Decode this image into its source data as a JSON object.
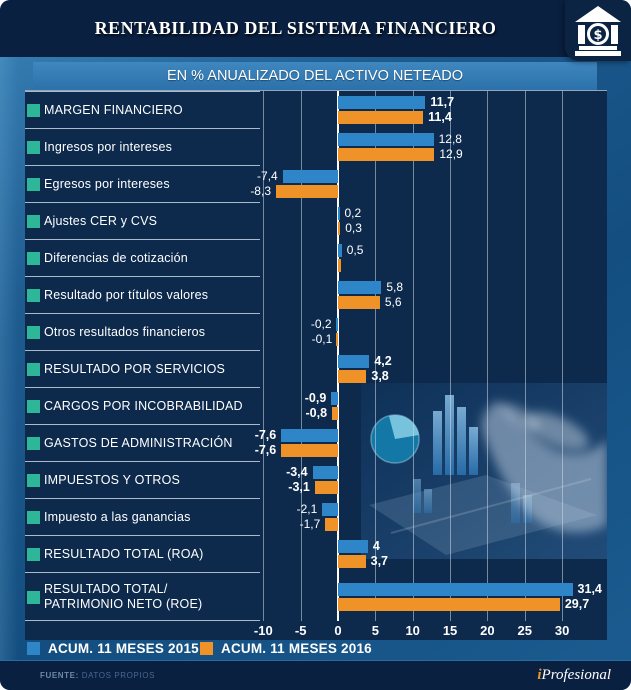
{
  "header": {
    "title": "RENTABILIDAD DEL SISTEMA FINANCIERO"
  },
  "icons": {
    "bank": "bank-dollar-icon",
    "dollar": "$"
  },
  "subtitle": "EN % ANUALIZADO DEL ACTIVO NETEADO",
  "chart_data": {
    "type": "bar",
    "orientation": "horizontal",
    "title": "RENTABILIDAD DEL SISTEMA FINANCIERO",
    "subtitle": "EN % ANUALIZADO DEL ACTIVO NETEADO",
    "xlim": [
      -12,
      36
    ],
    "ticks": [
      -10,
      -5,
      0,
      5,
      10,
      15,
      20,
      25,
      30
    ],
    "tick_labels": [
      "-10",
      "-5",
      "0",
      "5",
      "10",
      "15",
      "20",
      "25",
      "30"
    ],
    "grid": true,
    "legend_position": "bottom",
    "categories": [
      "MARGEN FINANCIERO",
      "Ingresos por intereses",
      "Egresos por intereses",
      "Ajustes CER y CVS",
      "Diferencias de cotización",
      "Resultado por títulos valores",
      "Otros resultados financieros",
      "RESULTADO POR SERVICIOS",
      "CARGOS POR INCOBRABILIDAD",
      "GASTOS DE ADMINISTRACIÓN",
      "IMPUESTOS Y OTROS",
      "Impuesto a las ganancias",
      "RESULTADO TOTAL (ROA)",
      "RESULTADO TOTAL/\nPATRIMONIO NETO (ROE)"
    ],
    "series": [
      {
        "name": "ACUM. 11 MESES 2015",
        "color": "#2e86c8",
        "values": [
          11.7,
          12.8,
          -7.4,
          0.2,
          0.5,
          5.8,
          -0.2,
          4.2,
          -0.9,
          -7.6,
          -3.4,
          -2.1,
          4,
          31.4
        ]
      },
      {
        "name": "ACUM. 11 MESES 2016",
        "color": "#ef9227",
        "values": [
          11.4,
          12.9,
          -8.3,
          0.3,
          0.4,
          5.6,
          -0.1,
          3.8,
          -0.8,
          -7.6,
          -3.1,
          -1.7,
          3.7,
          29.7
        ]
      }
    ],
    "value_labels": [
      [
        "11,7",
        "11,4"
      ],
      [
        "12,8",
        "12,9"
      ],
      [
        "-7,4",
        "-8,3"
      ],
      [
        "0,2",
        "0,3"
      ],
      [
        "0,5",
        ""
      ],
      [
        "5,8",
        "5,6"
      ],
      [
        "-0,2",
        "-0,1"
      ],
      [
        "4,2",
        "3,8"
      ],
      [
        "-0,9",
        "-0,8"
      ],
      [
        "-7,6",
        "-7,6"
      ],
      [
        "-3,4",
        "-3,1"
      ],
      [
        "-2,1",
        "-1,7"
      ],
      [
        "4",
        "3,7"
      ],
      [
        "31,4",
        "29,7"
      ]
    ],
    "bold_rows": [
      0,
      7,
      8,
      9,
      10,
      12,
      13
    ]
  },
  "legend": {
    "items": [
      {
        "label": "ACUM. 11 MESES 2015",
        "color": "#2e86c8"
      },
      {
        "label": "ACUM. 11 MESES 2016",
        "color": "#ef9227"
      }
    ]
  },
  "footer": {
    "source_label": "FUENTE:",
    "source_value": "DATOS PROPIOS",
    "brand_prefix": "i",
    "brand_name": "Profesional"
  }
}
